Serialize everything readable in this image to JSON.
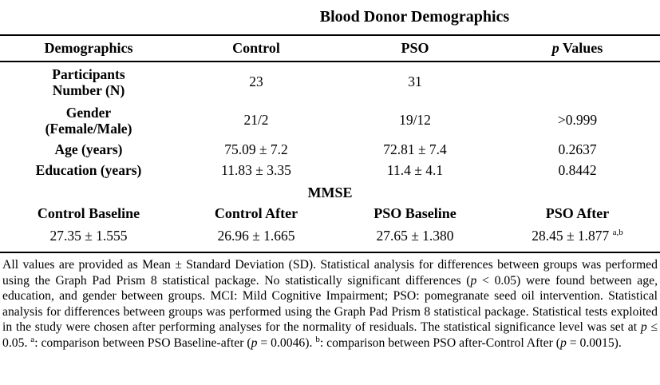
{
  "title": "Blood Donor Demographics",
  "header": {
    "demographics": "Demographics",
    "control": "Control",
    "pso": "PSO",
    "p_italic": "p",
    "p_rest": " Values"
  },
  "rows": {
    "participants": {
      "label1": "Participants",
      "label2": "Number (N)",
      "control": "23",
      "pso": "31",
      "p": ""
    },
    "gender": {
      "label1": "Gender",
      "label2": "(Female/Male)",
      "control": "21/2",
      "pso": "19/12",
      "p": ">0.999"
    },
    "age": {
      "label": "Age (years)",
      "control": "75.09 ± 7.2",
      "pso": "72.81 ± 7.4",
      "p": "0.2637"
    },
    "education": {
      "label": "Education (years)",
      "control": "11.83 ± 3.35",
      "pso": "11.4 ± 4.1",
      "p": "0.8442"
    }
  },
  "mmse": {
    "section_label": "MMSE",
    "col1_header": "Control Baseline",
    "col2_header": "Control After",
    "col3_header": "PSO Baseline",
    "col4_header": "PSO After",
    "col1_value": "27.35 ± 1.555",
    "col2_value": "26.96 ± 1.665",
    "col3_value": "27.65 ± 1.380",
    "col4_value": "28.45 ± 1.877",
    "col4_sup": "a,b"
  },
  "footnote": {
    "part1": "All values are provided as Mean ± Standard Deviation (SD). Statistical analysis for differences between groups was performed using the Graph Pad Prism 8 statistical package. No statistically significant differences (",
    "p1": "p",
    "part2": " < 0.05) were found between age, education, and gender between groups. MCI: Mild Cognitive Impairment; PSO: pomegranate seed oil intervention. Statistical analysis for differences between groups was performed using the Graph Pad Prism 8 statistical package. Statistical tests exploited in the study were chosen after performing analyses for the normality of residuals. The statistical significance level was set at ",
    "p2": "p",
    "part3": " ≤ 0.05. ",
    "sup_a": "a",
    "part4": ": comparison between PSO Baseline-after (",
    "p3": "p",
    "part5": " = 0.0046). ",
    "sup_b": "b",
    "part6": ": comparison between PSO after-Control After (",
    "p4": "p",
    "part7": " = 0.0015)."
  }
}
